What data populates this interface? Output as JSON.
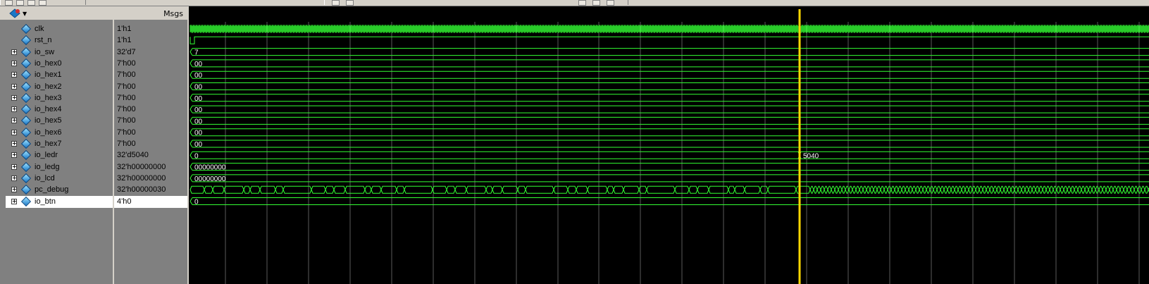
{
  "header": {
    "values_label": "Msgs"
  },
  "cursor": {
    "value_label": "5040"
  },
  "signals": [
    {
      "name": "clk",
      "value": "1'h1",
      "kind": "clock",
      "expandable": false
    },
    {
      "name": "rst_n",
      "value": "1'h1",
      "kind": "reset",
      "expandable": false
    },
    {
      "name": "io_sw",
      "value": "32'd7",
      "kind": "bus",
      "expandable": true,
      "wave_label": "7"
    },
    {
      "name": "io_hex0",
      "value": "7'h00",
      "kind": "bus",
      "expandable": true,
      "wave_label": "00"
    },
    {
      "name": "io_hex1",
      "value": "7'h00",
      "kind": "bus",
      "expandable": true,
      "wave_label": "00"
    },
    {
      "name": "io_hex2",
      "value": "7'h00",
      "kind": "bus",
      "expandable": true,
      "wave_label": "00"
    },
    {
      "name": "io_hex3",
      "value": "7'h00",
      "kind": "bus",
      "expandable": true,
      "wave_label": "00"
    },
    {
      "name": "io_hex4",
      "value": "7'h00",
      "kind": "bus",
      "expandable": true,
      "wave_label": "00"
    },
    {
      "name": "io_hex5",
      "value": "7'h00",
      "kind": "bus",
      "expandable": true,
      "wave_label": "00"
    },
    {
      "name": "io_hex6",
      "value": "7'h00",
      "kind": "bus",
      "expandable": true,
      "wave_label": "00"
    },
    {
      "name": "io_hex7",
      "value": "7'h00",
      "kind": "bus",
      "expandable": true,
      "wave_label": "00"
    },
    {
      "name": "io_ledr",
      "value": "32'd5040",
      "kind": "bus",
      "expandable": true,
      "wave_label": "0",
      "wave_label_after": "5040"
    },
    {
      "name": "io_ledg",
      "value": "32'h00000000",
      "kind": "bus",
      "expandable": true,
      "wave_label": "00000000"
    },
    {
      "name": "io_lcd",
      "value": "32'h00000000",
      "kind": "bus",
      "expandable": true,
      "wave_label": "00000000"
    },
    {
      "name": "pc_debug",
      "value": "32'h00000030",
      "kind": "busy",
      "expandable": true
    },
    {
      "name": "io_btn",
      "value": "4'h0",
      "kind": "bus",
      "expandable": true,
      "wave_label": "0",
      "selected": true
    }
  ],
  "colors": {
    "wave": "#33ff33",
    "cursor": "#ffd700",
    "grid": "#5a5a5a",
    "background": "#000000",
    "pane": "#808080",
    "selected_row": "#ffffff",
    "signal_icon": "#1a78c8"
  },
  "icons": {
    "signal": "blue-diamond-icon",
    "expand": "plus-box-icon",
    "header": "wave-tool-icon"
  }
}
